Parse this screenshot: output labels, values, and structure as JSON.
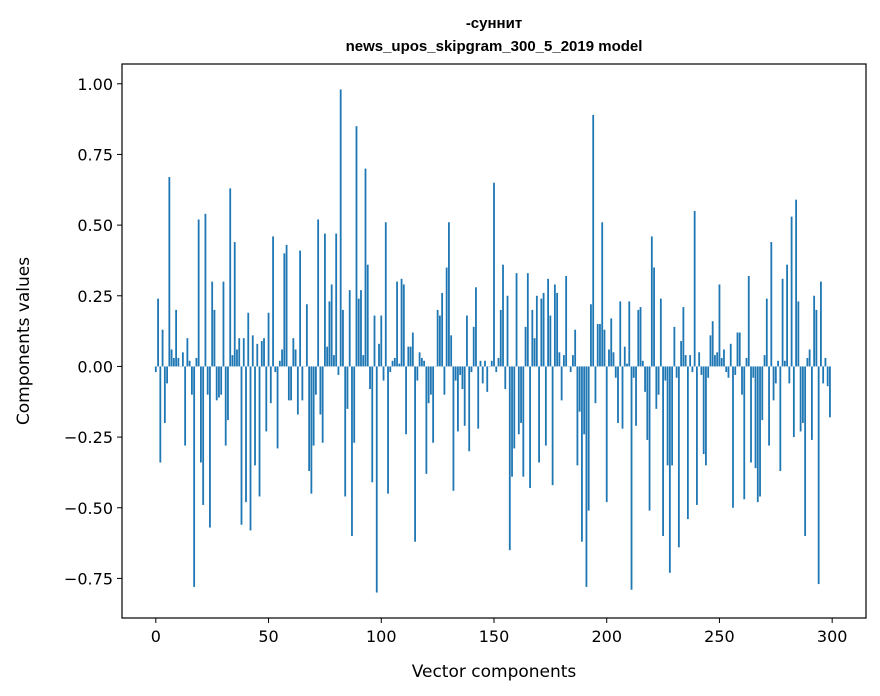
{
  "chart_data": {
    "type": "bar",
    "title": "-суннит",
    "subtitle": "news_upos_skipgram_300_5_2019 model",
    "xlabel": "Vector components",
    "ylabel": "Components values",
    "xlim": [
      -15,
      315
    ],
    "ylim": [
      -0.89,
      1.07
    ],
    "xticks": [
      0,
      50,
      100,
      150,
      200,
      250,
      300
    ],
    "yticks": [
      1.0,
      0.75,
      0.5,
      0.25,
      0.0,
      -0.25,
      -0.5,
      -0.75
    ],
    "ytick_labels": [
      "1.00",
      "0.75",
      "0.50",
      "0.25",
      "0.00",
      "−0.25",
      "−0.50",
      "−0.75"
    ],
    "bar_color": "#1f77b4",
    "grid": false,
    "values": [
      -0.02,
      0.24,
      -0.34,
      0.13,
      -0.2,
      -0.06,
      0.67,
      0.06,
      0.03,
      0.2,
      0.03,
      0.0,
      0.05,
      -0.28,
      0.1,
      0.02,
      -0.1,
      -0.78,
      0.03,
      0.52,
      -0.34,
      -0.49,
      0.54,
      -0.1,
      -0.57,
      0.3,
      0.2,
      -0.12,
      -0.11,
      -0.1,
      0.3,
      -0.28,
      -0.19,
      0.63,
      0.04,
      0.44,
      0.06,
      0.1,
      -0.56,
      0.1,
      -0.48,
      0.19,
      -0.58,
      0.11,
      -0.35,
      0.08,
      -0.46,
      0.09,
      0.1,
      -0.23,
      0.19,
      -0.13,
      0.46,
      -0.02,
      -0.29,
      0.02,
      0.06,
      0.4,
      0.43,
      -0.12,
      -0.12,
      0.1,
      0.06,
      -0.17,
      0.41,
      -0.12,
      0.0,
      0.22,
      -0.37,
      -0.45,
      -0.28,
      -0.1,
      0.52,
      -0.17,
      -0.27,
      0.47,
      0.07,
      0.23,
      0.29,
      0.04,
      0.47,
      -0.03,
      0.98,
      0.2,
      -0.46,
      -0.15,
      0.27,
      -0.6,
      -0.27,
      0.85,
      0.24,
      0.27,
      0.04,
      0.7,
      0.36,
      -0.08,
      -0.41,
      0.18,
      -0.8,
      0.08,
      0.18,
      -0.05,
      0.51,
      -0.45,
      -0.02,
      0.02,
      0.03,
      0.3,
      0.01,
      0.31,
      0.29,
      -0.24,
      0.07,
      0.07,
      0.12,
      -0.62,
      -0.05,
      0.05,
      0.03,
      0.02,
      -0.38,
      -0.13,
      -0.1,
      -0.27,
      0.0,
      0.2,
      0.18,
      0.26,
      -0.1,
      0.35,
      0.51,
      0.11,
      -0.44,
      -0.05,
      -0.23,
      -0.03,
      -0.08,
      -0.21,
      0.18,
      -0.3,
      -0.02,
      0.14,
      0.28,
      -0.22,
      0.02,
      -0.06,
      0.02,
      -0.09,
      0.0,
      0.02,
      0.65,
      -0.02,
      0.03,
      0.2,
      0.36,
      -0.08,
      0.25,
      -0.65,
      -0.39,
      -0.29,
      0.33,
      -0.24,
      -0.2,
      -0.39,
      0.14,
      0.33,
      -0.43,
      0.2,
      0.1,
      0.25,
      -0.34,
      0.24,
      0.26,
      -0.28,
      0.31,
      0.18,
      -0.42,
      0.29,
      0.26,
      0.05,
      -0.12,
      0.04,
      0.32,
      0.0,
      -0.02,
      0.04,
      0.13,
      -0.35,
      -0.16,
      -0.62,
      -0.24,
      -0.78,
      -0.51,
      0.22,
      0.89,
      -0.13,
      0.15,
      0.15,
      0.51,
      0.13,
      -0.48,
      0.06,
      0.17,
      0.05,
      -0.04,
      -0.2,
      0.23,
      -0.22,
      0.07,
      0.01,
      0.23,
      -0.79,
      -0.04,
      -0.21,
      0.2,
      0.21,
      0.02,
      -0.09,
      -0.26,
      -0.51,
      0.46,
      0.35,
      -0.15,
      -0.1,
      0.24,
      -0.6,
      -0.05,
      -0.35,
      -0.73,
      -0.35,
      0.14,
      -0.04,
      -0.64,
      0.09,
      0.21,
      0.04,
      -0.54,
      0.04,
      -0.02,
      0.55,
      -0.49,
      0.05,
      -0.03,
      -0.31,
      -0.35,
      -0.04,
      0.11,
      0.16,
      0.04,
      0.05,
      0.29,
      0.03,
      0.06,
      -0.02,
      -0.04,
      0.08,
      -0.5,
      -0.03,
      0.12,
      0.12,
      -0.1,
      -0.47,
      0.03,
      0.32,
      -0.34,
      -0.04,
      -0.36,
      -0.48,
      -0.46,
      -0.19,
      0.04,
      0.24,
      -0.28,
      0.44,
      -0.12,
      -0.06,
      0.02,
      -0.37,
      0.31,
      0.02,
      0.36,
      -0.06,
      0.53,
      -0.25,
      0.59,
      0.23,
      -0.23,
      -0.2,
      -0.6,
      0.03,
      0.06,
      -0.26,
      0.25,
      0.2,
      -0.77,
      0.3,
      -0.06,
      0.03,
      -0.07,
      -0.18
    ]
  }
}
